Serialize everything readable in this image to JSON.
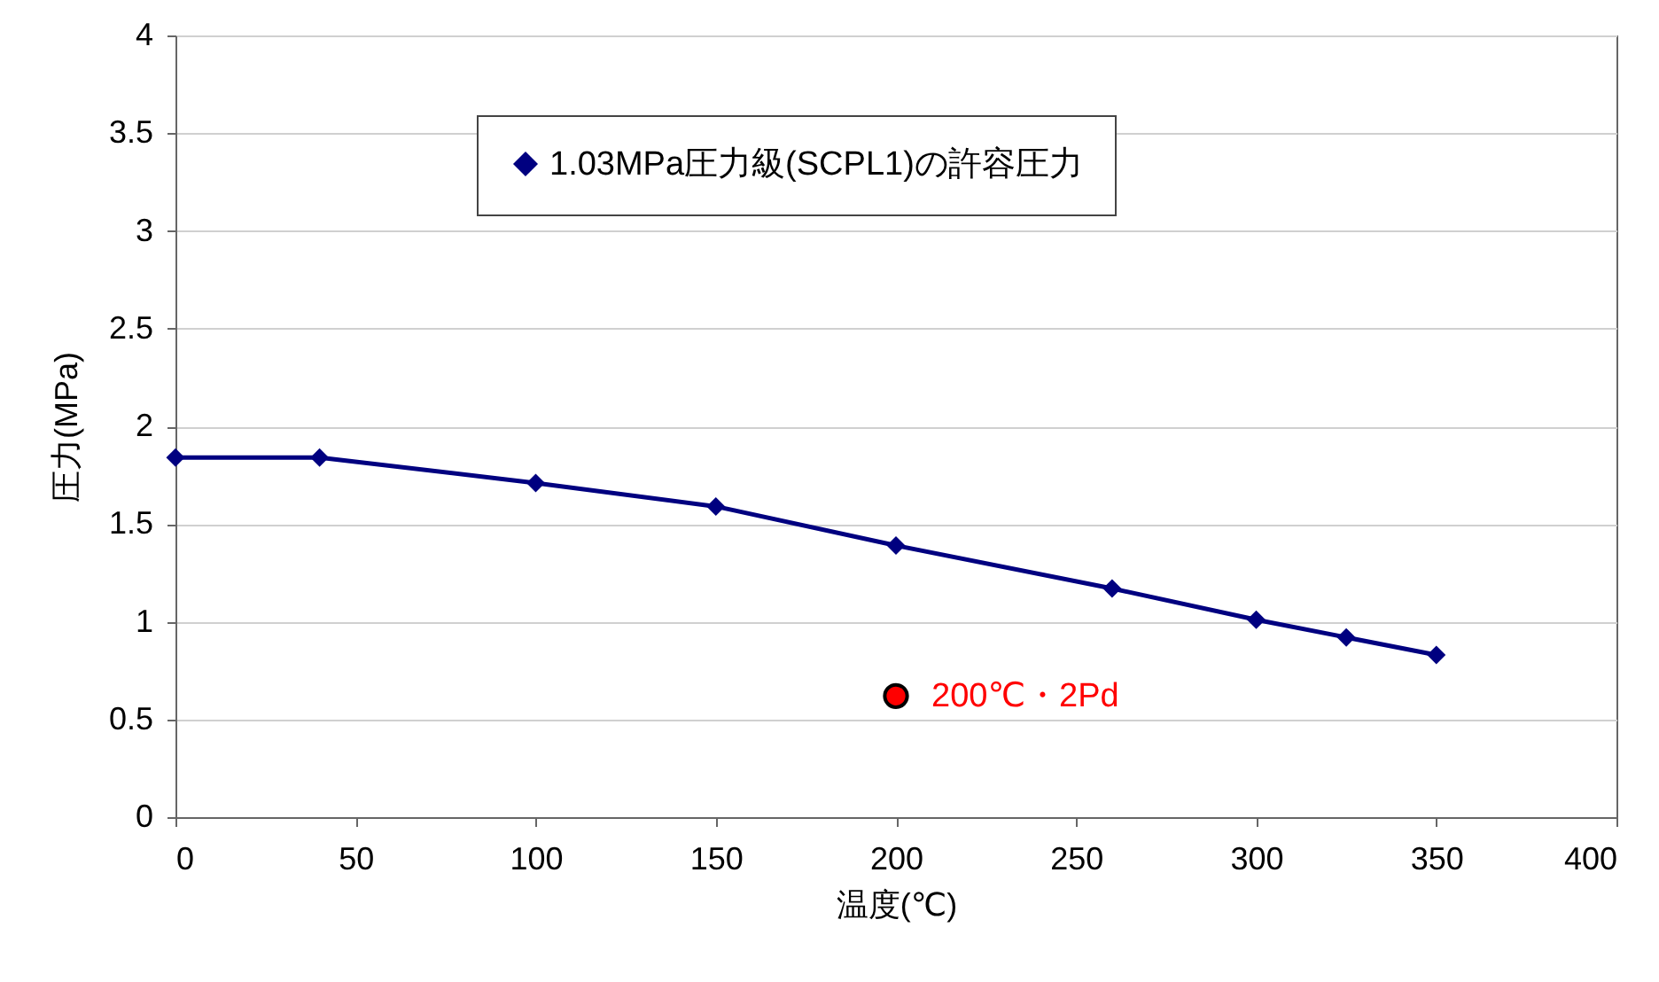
{
  "chart_data": {
    "type": "line",
    "xlabel": "温度(℃)",
    "ylabel": "圧力(MPa)",
    "xlim": [
      0,
      400
    ],
    "xticks": [
      0,
      50,
      100,
      150,
      200,
      250,
      300,
      350,
      400
    ],
    "ylim": [
      0,
      4
    ],
    "yticks": [
      0,
      0.5,
      1,
      1.5,
      2,
      2.5,
      3,
      3.5,
      4
    ],
    "grid": "y",
    "legend": "top",
    "marker": "diamond",
    "series": [
      {
        "name": "1.03MPa圧力級(SCPL1)の許容圧力",
        "color": "#000080",
        "x": [
          0,
          40,
          100,
          150,
          200,
          260,
          300,
          325,
          350
        ],
        "values": [
          1.84,
          1.84,
          1.71,
          1.59,
          1.39,
          1.17,
          1.01,
          0.92,
          0.83
        ]
      },
      {
        "type": "scatter",
        "marker": "circle",
        "color": "#ff0000",
        "x": [
          200
        ],
        "values": [
          0.62
        ]
      }
    ],
    "annotations": [
      {
        "text": "200℃・2Pd",
        "x": 200,
        "y": 0.62
      }
    ]
  }
}
